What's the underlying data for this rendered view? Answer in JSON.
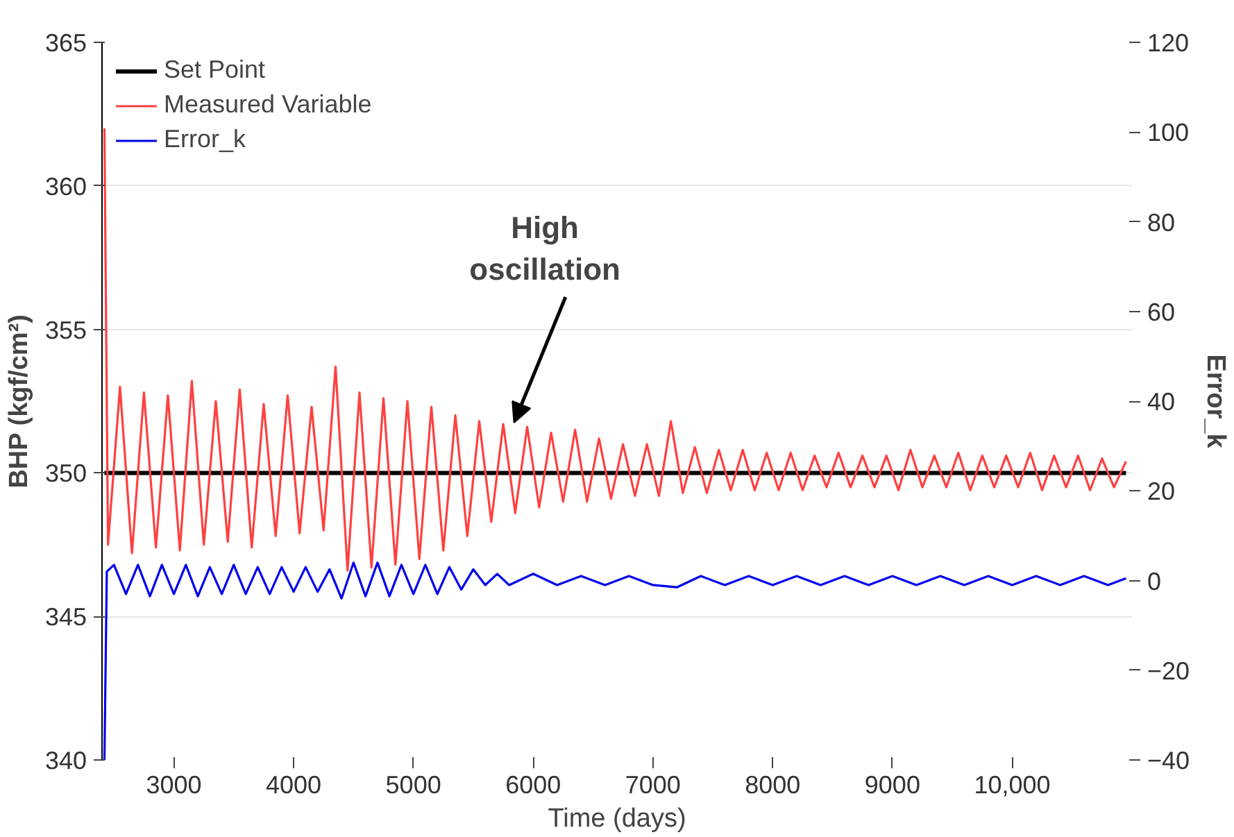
{
  "chart_data": {
    "type": "line",
    "xlabel": "Time (days)",
    "ylabel": "BHP (kgf/cm²)",
    "y2label": "Error_k",
    "xlim": [
      2400,
      11000
    ],
    "xticks": [
      3000,
      4000,
      5000,
      6000,
      7000,
      8000,
      9000,
      {
        "value": 10000,
        "label": "10,000"
      }
    ],
    "ylim": [
      340,
      365
    ],
    "yticks": [
      340,
      345,
      350,
      355,
      360,
      365
    ],
    "y2lim": [
      -40,
      120
    ],
    "y2ticks": [
      -40,
      -20,
      0,
      20,
      40,
      60,
      80,
      100,
      120
    ],
    "grid": "y",
    "legend": "top left",
    "line_style": "solid",
    "annotations": [
      "High\noscillation"
    ],
    "series": [
      {
        "name": "Set Point",
        "color": "#000000",
        "x": [
          2420,
          10950
        ],
        "values": [
          350,
          350
        ]
      },
      {
        "name": "Measured Variable",
        "color": "#ff4040",
        "x": [
          2420,
          2450,
          2550,
          2650,
          2750,
          2850,
          2950,
          3050,
          3150,
          3250,
          3350,
          3450,
          3550,
          3650,
          3750,
          3850,
          3950,
          4050,
          4150,
          4250,
          4350,
          4450,
          4550,
          4650,
          4750,
          4850,
          4950,
          5050,
          5150,
          5250,
          5350,
          5450,
          5550,
          5650,
          5750,
          5850,
          5950,
          6050,
          6150,
          6250,
          6350,
          6450,
          6550,
          6650,
          6750,
          6850,
          6950,
          7050,
          7150,
          7250,
          7350,
          7450,
          7550,
          7650,
          7750,
          7850,
          7950,
          8050,
          8150,
          8250,
          8350,
          8450,
          8550,
          8650,
          8750,
          8850,
          8950,
          9050,
          9150,
          9250,
          9350,
          9450,
          9550,
          9650,
          9750,
          9850,
          9950,
          10050,
          10150,
          10250,
          10350,
          10450,
          10550,
          10650,
          10750,
          10850,
          10950
        ],
        "values": [
          362,
          347.5,
          353,
          347.2,
          352.8,
          347.4,
          352.7,
          347.3,
          353.2,
          347.5,
          352.5,
          347.6,
          352.9,
          347.4,
          352.4,
          347.8,
          352.7,
          347.9,
          352.3,
          348,
          353.7,
          346.6,
          352.8,
          346.7,
          352.6,
          346.8,
          352.5,
          347,
          352.3,
          347.3,
          352,
          347.8,
          351.8,
          348.3,
          351.7,
          348.6,
          351.6,
          348.8,
          351.4,
          349,
          351.5,
          349,
          351.2,
          349.1,
          351,
          349.2,
          351,
          349.2,
          351.8,
          349.3,
          350.9,
          349.3,
          350.8,
          349.4,
          350.8,
          349.4,
          350.7,
          349.4,
          350.7,
          349.4,
          350.6,
          349.5,
          350.7,
          349.5,
          350.6,
          349.5,
          350.6,
          349.4,
          350.8,
          349.5,
          350.6,
          349.5,
          350.7,
          349.4,
          350.6,
          349.5,
          350.6,
          349.5,
          350.7,
          349.4,
          350.6,
          349.5,
          350.6,
          349.4,
          350.5,
          349.5,
          350.4
        ]
      },
      {
        "name": "Error_k",
        "color": "#0000ee",
        "axis": "y2",
        "x": [
          2420,
          2440,
          2500,
          2600,
          2700,
          2800,
          2900,
          3000,
          3100,
          3200,
          3300,
          3400,
          3500,
          3600,
          3700,
          3800,
          3900,
          4000,
          4100,
          4200,
          4300,
          4400,
          4500,
          4600,
          4700,
          4800,
          4900,
          5000,
          5100,
          5200,
          5300,
          5400,
          5500,
          5600,
          5700,
          5800,
          6000,
          6200,
          6400,
          6600,
          6800,
          7000,
          7200,
          7400,
          7600,
          7800,
          8000,
          8200,
          8400,
          8600,
          8800,
          9000,
          9200,
          9400,
          9600,
          9800,
          10000,
          10200,
          10400,
          10600,
          10800,
          10950
        ],
        "values": [
          -40,
          2,
          3.5,
          -3,
          3.5,
          -3.5,
          3.5,
          -3,
          3.5,
          -3.5,
          3,
          -3,
          3.5,
          -3,
          3,
          -3,
          3,
          -2.5,
          3,
          -2.5,
          2.5,
          -4,
          4,
          -3.5,
          4,
          -3.5,
          3.5,
          -3,
          3.5,
          -3,
          3,
          -2,
          2.5,
          -1,
          1.5,
          -1,
          1.5,
          -1,
          1,
          -1,
          1,
          -1,
          -1.5,
          1,
          -1,
          1,
          -1,
          1,
          -1,
          1,
          -1,
          1,
          -1,
          1,
          -1,
          1,
          -1,
          1,
          -1,
          1,
          -1,
          0.5
        ]
      }
    ]
  }
}
